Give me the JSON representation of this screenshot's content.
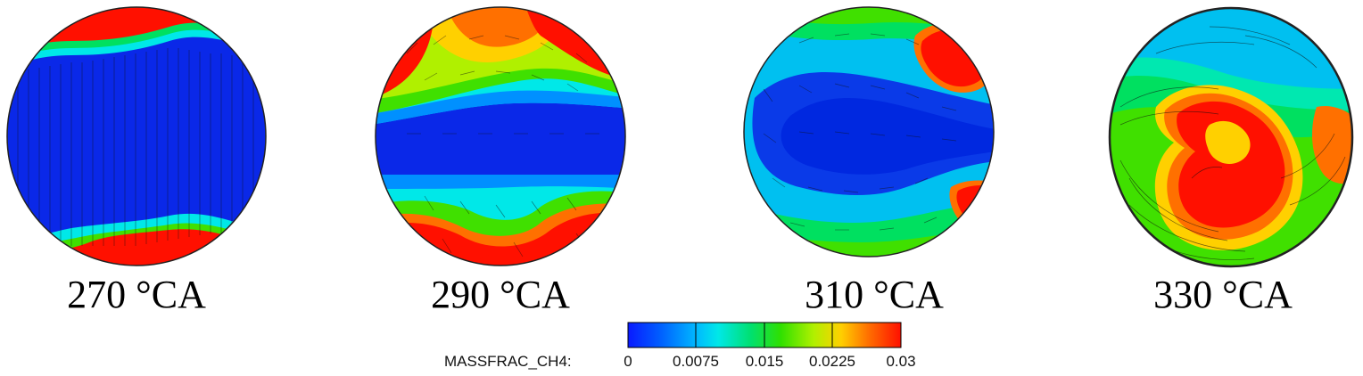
{
  "panels": [
    {
      "label": "270 °CA"
    },
    {
      "label": "290 °CA"
    },
    {
      "label": "310 °CA"
    },
    {
      "label": "330 °CA"
    }
  ],
  "colorbar": {
    "title": "MASSFRAC_CH4:",
    "ticks": [
      "0",
      "0.0075",
      "0.015",
      "0.0225",
      "0.03"
    ],
    "range": [
      0,
      0.03
    ],
    "colors": [
      "#0a1aff",
      "#0090ff",
      "#00e8e8",
      "#00e060",
      "#40e000",
      "#b0f000",
      "#ffd000",
      "#ff7000",
      "#ff1000"
    ]
  }
}
